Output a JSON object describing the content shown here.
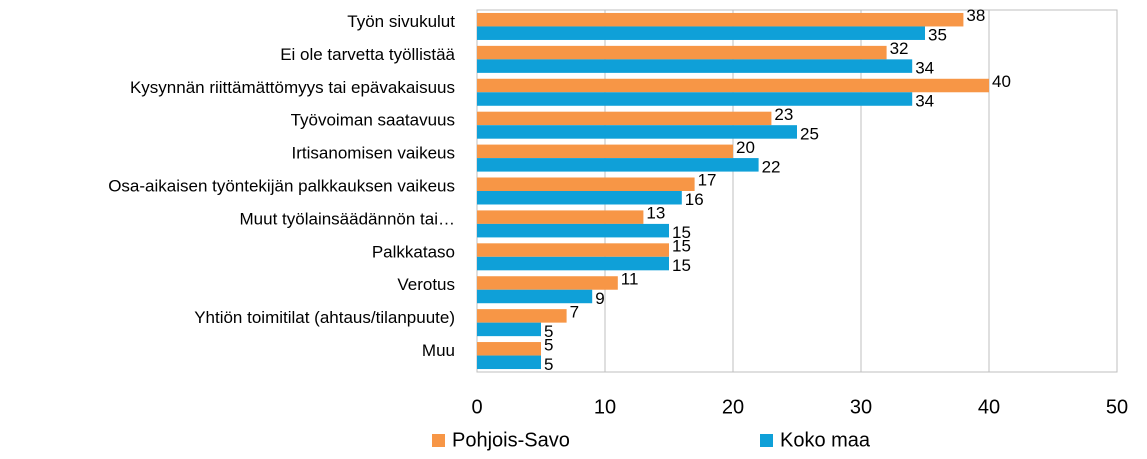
{
  "chart_data": {
    "type": "hbar",
    "categories": [
      "Työn sivukulut",
      "Ei ole tarvetta työllistää",
      "Kysynnän riittämättömyys tai epävakaisuus",
      "Työvoiman saatavuus",
      "Irtisanomisen vaikeus",
      "Osa-aikaisen työntekijän palkkauksen vaikeus",
      "Muut työlainsäädännön tai…",
      "Palkkataso",
      "Verotus",
      "Yhtiön toimitilat (ahtaus/tilanpuute)",
      "Muu"
    ],
    "series": [
      {
        "name": "Pohjois-Savo",
        "color": "#f79646",
        "values": [
          38,
          32,
          40,
          23,
          20,
          17,
          13,
          15,
          11,
          7,
          5
        ]
      },
      {
        "name": "Koko maa",
        "color": "#0fa0d8",
        "values": [
          35,
          34,
          34,
          25,
          22,
          16,
          15,
          15,
          9,
          5,
          5
        ]
      }
    ],
    "xlim": [
      0,
      50
    ],
    "xticks": [
      0,
      10,
      20,
      30,
      40,
      50
    ],
    "grid": true,
    "legend": "bottom"
  }
}
